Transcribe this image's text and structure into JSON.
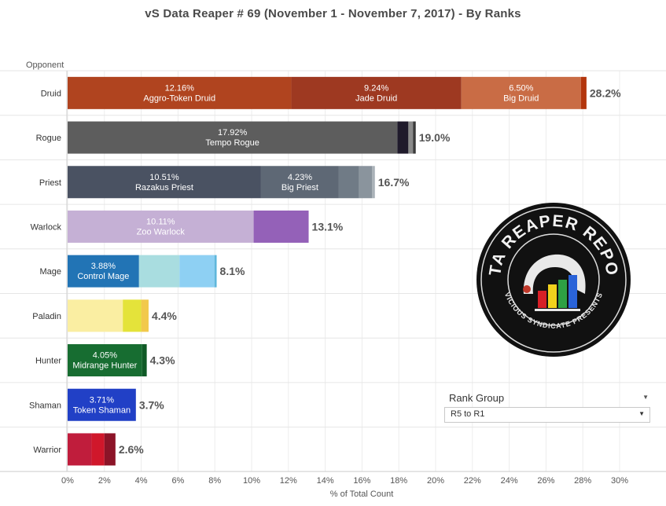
{
  "title": "vS Data Reaper #  69 (November 1 - November 7, 2017) - By Ranks",
  "rank_group": {
    "label": "Rank Group",
    "selected": "R5 to R1"
  },
  "logo": {
    "text_top": "DATA REAPER REPORT",
    "text_bottom": "VICIOUS SYNDICATE PRESENTS"
  },
  "colors": {
    "accent_total": "#555555"
  },
  "chart_data": {
    "type": "bar",
    "orientation": "horizontal",
    "stacked": true,
    "row_header": "Opponent",
    "xlabel": "% of Total Count",
    "xlim": [
      0,
      30
    ],
    "xticks": [
      0,
      2,
      4,
      6,
      8,
      10,
      12,
      14,
      16,
      18,
      20,
      22,
      24,
      26,
      28,
      30
    ],
    "tick_labels": [
      "0%",
      "2%",
      "4%",
      "6%",
      "8%",
      "10%",
      "12%",
      "14%",
      "16%",
      "18%",
      "20%",
      "22%",
      "24%",
      "26%",
      "28%",
      "30%"
    ],
    "grid": true,
    "categories": [
      "Druid",
      "Rogue",
      "Priest",
      "Warlock",
      "Mage",
      "Paladin",
      "Hunter",
      "Shaman",
      "Warrior"
    ],
    "totals": [
      "28.2%",
      "19.0%",
      "16.7%",
      "13.1%",
      "8.1%",
      "4.4%",
      "4.3%",
      "3.7%",
      "2.6%"
    ],
    "rows": [
      {
        "class": "Druid",
        "segments": [
          {
            "value": 12.16,
            "pct": "12.16%",
            "name": "Aggro-Token Druid",
            "color": "#b0441f"
          },
          {
            "value": 9.24,
            "pct": "9.24%",
            "name": "Jade Druid",
            "color": "#9e3921"
          },
          {
            "value": 6.5,
            "pct": "6.50%",
            "name": "Big Druid",
            "color": "#c96c45"
          },
          {
            "value": 0.3,
            "color": "#b3360d"
          }
        ]
      },
      {
        "class": "Rogue",
        "segments": [
          {
            "value": 17.92,
            "pct": "17.92%",
            "name": "Tempo Rogue",
            "color": "#5d5d5d"
          },
          {
            "value": 0.6,
            "color": "#1f1a2b"
          },
          {
            "value": 0.25,
            "color": "#8a8a8a"
          },
          {
            "value": 0.15,
            "color": "#3a3a3a"
          }
        ]
      },
      {
        "class": "Priest",
        "segments": [
          {
            "value": 10.51,
            "pct": "10.51%",
            "name": "Razakus Priest",
            "color": "#4a5262"
          },
          {
            "value": 4.23,
            "pct": "4.23%",
            "name": "Big Priest",
            "color": "#5e6875"
          },
          {
            "value": 1.1,
            "color": "#707b86"
          },
          {
            "value": 0.7,
            "color": "#8a949d"
          },
          {
            "value": 0.16,
            "color": "#aab2b8"
          }
        ]
      },
      {
        "class": "Warlock",
        "segments": [
          {
            "value": 10.11,
            "pct": "10.11%",
            "name": "Zoo Warlock",
            "color": "#c5b0d5"
          },
          {
            "value": 2.99,
            "color": "#9461b8"
          }
        ]
      },
      {
        "class": "Mage",
        "segments": [
          {
            "value": 3.88,
            "pct": "3.88%",
            "name": "Control Mage",
            "color": "#2274b5"
          },
          {
            "value": 2.2,
            "color": "#a9dde0"
          },
          {
            "value": 1.9,
            "color": "#8ed0f3"
          },
          {
            "value": 0.12,
            "color": "#5fb7dc"
          }
        ]
      },
      {
        "class": "Paladin",
        "segments": [
          {
            "value": 3.0,
            "color": "#faeea2"
          },
          {
            "value": 1.0,
            "color": "#e4e33a"
          },
          {
            "value": 0.4,
            "color": "#f2c94c"
          }
        ]
      },
      {
        "class": "Hunter",
        "segments": [
          {
            "value": 4.05,
            "pct": "4.05%",
            "name": "Midrange Hunter",
            "color": "#176d31"
          },
          {
            "value": 0.25,
            "color": "#0f5a26"
          }
        ]
      },
      {
        "class": "Shaman",
        "segments": [
          {
            "value": 3.71,
            "pct": "3.71%",
            "name": "Token Shaman",
            "color": "#2140c6"
          }
        ]
      },
      {
        "class": "Warrior",
        "segments": [
          {
            "value": 1.3,
            "color": "#c01d3c"
          },
          {
            "value": 0.7,
            "color": "#d0172b"
          },
          {
            "value": 0.6,
            "color": "#8c1428"
          }
        ]
      }
    ]
  }
}
